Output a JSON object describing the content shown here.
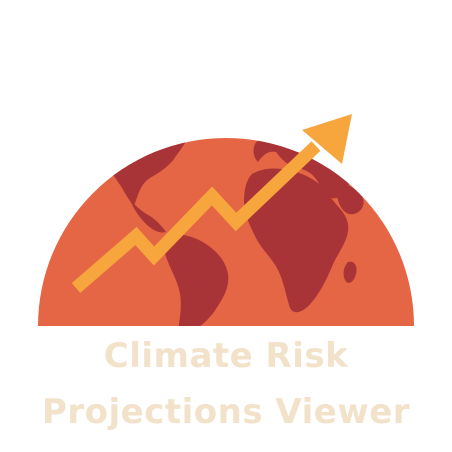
{
  "logo": {
    "title_line_1": "Climate Risk",
    "title_line_2": "Projections Viewer",
    "icon": "globe-with-rising-arrow-icon"
  },
  "colors": {
    "globe": "#E56645",
    "land": "#A93438",
    "arrow": "#F7A63E",
    "wordmark": "#F1E2C9",
    "background": "#FFFFFF"
  }
}
